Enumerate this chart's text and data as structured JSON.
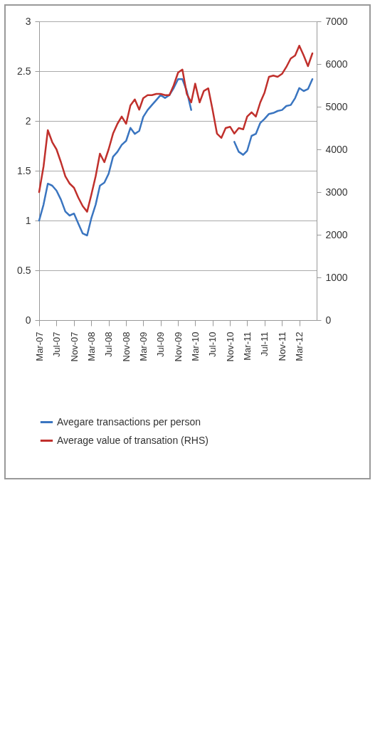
{
  "chart_data": {
    "type": "line",
    "x": [
      "2007-03",
      "2007-04",
      "2007-05",
      "2007-06",
      "2007-07",
      "2007-08",
      "2007-09",
      "2007-10",
      "2007-11",
      "2007-12",
      "2008-01",
      "2008-02",
      "2008-03",
      "2008-04",
      "2008-05",
      "2008-06",
      "2008-07",
      "2008-08",
      "2008-09",
      "2008-10",
      "2008-11",
      "2008-12",
      "2009-01",
      "2009-02",
      "2009-03",
      "2009-04",
      "2009-05",
      "2009-06",
      "2009-07",
      "2009-08",
      "2009-09",
      "2009-10",
      "2009-11",
      "2009-12",
      "2010-01",
      "2010-02",
      "2010-03",
      "2010-04",
      "2010-05",
      "2010-06",
      "2010-07",
      "2010-08",
      "2010-09",
      "2010-10",
      "2010-11",
      "2010-12",
      "2011-01",
      "2011-02",
      "2011-03",
      "2011-04",
      "2011-05",
      "2011-06",
      "2011-07",
      "2011-08",
      "2011-09",
      "2011-10",
      "2011-11",
      "2011-12",
      "2012-01",
      "2012-02",
      "2012-03",
      "2012-04",
      "2012-05",
      "2012-06"
    ],
    "series": [
      {
        "name": "Avegare transactions per person",
        "color": "#3a75c0",
        "values": [
          1.0,
          1.16,
          1.37,
          1.35,
          1.3,
          1.21,
          1.09,
          1.05,
          1.07,
          0.97,
          0.87,
          0.85,
          1.02,
          1.16,
          1.35,
          1.38,
          1.47,
          1.64,
          1.69,
          1.76,
          1.8,
          1.93,
          1.87,
          1.9,
          2.04,
          2.11,
          2.16,
          2.21,
          2.26,
          2.23,
          2.26,
          2.33,
          2.42,
          2.42,
          2.3,
          2.11,
          null,
          null,
          null,
          null,
          null,
          null,
          null,
          null,
          null,
          1.79,
          1.69,
          1.66,
          1.7,
          1.85,
          1.87,
          1.98,
          2.02,
          2.07,
          2.08,
          2.1,
          2.11,
          2.15,
          2.16,
          2.23,
          2.33,
          2.3,
          2.32,
          2.42
        ]
      },
      {
        "name": "Average value of transation (RHS)",
        "color": "#c0302c",
        "axis": "y2",
        "values": [
          3000,
          3600,
          4450,
          4170,
          4000,
          3700,
          3370,
          3200,
          3100,
          2870,
          2670,
          2540,
          2930,
          3370,
          3900,
          3700,
          4000,
          4370,
          4600,
          4770,
          4600,
          5030,
          5170,
          4930,
          5200,
          5270,
          5270,
          5300,
          5300,
          5270,
          5270,
          5500,
          5800,
          5870,
          5300,
          5100,
          5540,
          5100,
          5370,
          5430,
          4930,
          4370,
          4270,
          4500,
          4530,
          4370,
          4500,
          4470,
          4770,
          4870,
          4770,
          5100,
          5330,
          5700,
          5730,
          5700,
          5770,
          5930,
          6130,
          6200,
          6430,
          6200,
          5950,
          6250
        ]
      }
    ],
    "xlim": [
      "2007-03",
      "2012-07"
    ],
    "xticks": [
      {
        "value": "2007-03",
        "label": "Mar-07"
      },
      {
        "value": "2007-07",
        "label": "Jul-07"
      },
      {
        "value": "2007-11",
        "label": "Nov-07"
      },
      {
        "value": "2008-03",
        "label": "Mar-08"
      },
      {
        "value": "2008-07",
        "label": "Jul-08"
      },
      {
        "value": "2008-11",
        "label": "Nov-08"
      },
      {
        "value": "2009-03",
        "label": "Mar-09"
      },
      {
        "value": "2009-07",
        "label": "Jul-09"
      },
      {
        "value": "2009-11",
        "label": "Nov-09"
      },
      {
        "value": "2010-03",
        "label": "Mar-10"
      },
      {
        "value": "2010-07",
        "label": "Jul-10"
      },
      {
        "value": "2010-11",
        "label": "Nov-10"
      },
      {
        "value": "2011-03",
        "label": "Mar-11"
      },
      {
        "value": "2011-07",
        "label": "Jul-11"
      },
      {
        "value": "2011-11",
        "label": "Nov-11"
      },
      {
        "value": "2012-03",
        "label": "Mar-12"
      }
    ],
    "ylim": [
      0,
      3
    ],
    "yticks": [
      0,
      0.5,
      1,
      1.5,
      2,
      2.5,
      3
    ],
    "y2lim": [
      0,
      7000
    ],
    "y2ticks": [
      0,
      1000,
      2000,
      3000,
      4000,
      5000,
      6000,
      7000
    ],
    "grid": "y",
    "legend": "bottom"
  }
}
